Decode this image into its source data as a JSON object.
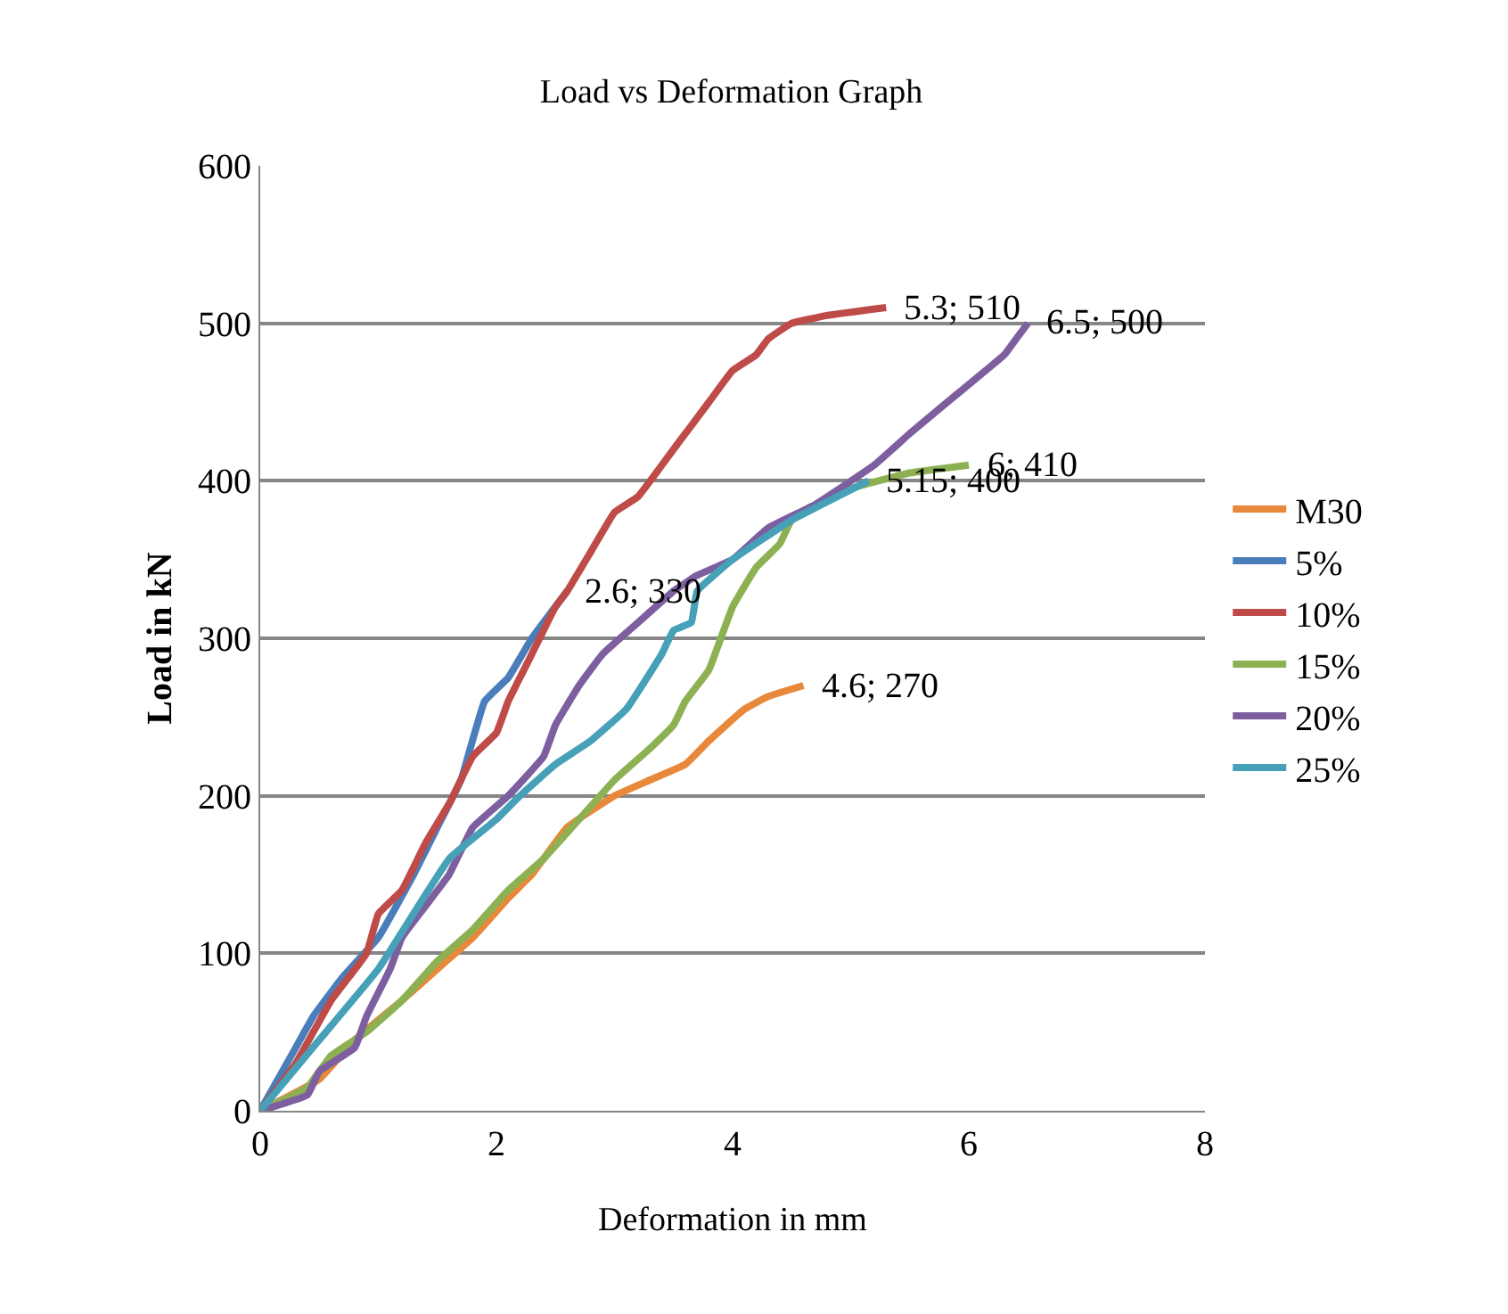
{
  "chart_data": {
    "type": "line",
    "title": "Load vs Deformation Graph",
    "xlabel": "Deformation in mm",
    "ylabel": "Load in kN",
    "xlim": [
      0,
      8
    ],
    "xticks": [
      0,
      2,
      4,
      6,
      8
    ],
    "ylim": [
      0,
      600
    ],
    "yticks": [
      0,
      100,
      200,
      300,
      400,
      500,
      600
    ],
    "grid": "y",
    "legend": "right",
    "marker": "none",
    "line_style": "solid",
    "series": [
      {
        "name": "M30",
        "color": "#e8883a",
        "x": [
          0,
          0.5,
          0.8,
          1.2,
          1.5,
          1.8,
          2.1,
          2.3,
          2.6,
          3.0,
          3.3,
          3.6,
          3.8,
          4.1,
          4.3,
          4.6
        ],
        "values": [
          0,
          20,
          45,
          70,
          90,
          110,
          135,
          150,
          180,
          200,
          210,
          220,
          235,
          255,
          263,
          270
        ]
      },
      {
        "name": "5%",
        "color": "#4a7ebb",
        "x": [
          0,
          0.3,
          0.45,
          0.7,
          1.0,
          1.3,
          1.5,
          1.7,
          1.9,
          2.1,
          2.3,
          2.6
        ],
        "values": [
          0,
          40,
          60,
          85,
          110,
          150,
          180,
          210,
          260,
          275,
          300,
          330
        ]
      },
      {
        "name": "10%",
        "color": "#be4b48",
        "x": [
          0,
          0.3,
          0.6,
          0.9,
          1.0,
          1.2,
          1.4,
          1.6,
          1.8,
          2.0,
          2.1,
          2.3,
          2.5,
          2.6,
          2.8,
          3.0,
          3.2,
          3.5,
          3.8,
          4.0,
          4.2,
          4.3,
          4.5,
          4.8,
          5.3
        ],
        "values": [
          0,
          30,
          70,
          100,
          125,
          140,
          170,
          195,
          225,
          240,
          260,
          290,
          320,
          330,
          355,
          380,
          390,
          420,
          450,
          470,
          480,
          490,
          500,
          505,
          510
        ]
      },
      {
        "name": "15%",
        "color": "#8db152",
        "x": [
          0,
          0.4,
          0.6,
          0.9,
          1.2,
          1.5,
          1.8,
          2.1,
          2.4,
          2.7,
          3.0,
          3.3,
          3.5,
          3.6,
          3.8,
          3.9,
          4.0,
          4.2,
          4.4,
          4.5,
          5.0,
          5.5,
          6.0
        ],
        "values": [
          0,
          15,
          35,
          50,
          70,
          95,
          115,
          140,
          160,
          185,
          210,
          230,
          245,
          260,
          280,
          300,
          320,
          345,
          360,
          375,
          395,
          405,
          410
        ]
      },
      {
        "name": "20%",
        "color": "#7d5fa0",
        "x": [
          0,
          0.4,
          0.5,
          0.8,
          0.9,
          1.1,
          1.2,
          1.4,
          1.6,
          1.8,
          2.1,
          2.4,
          2.5,
          2.7,
          2.9,
          3.2,
          3.5,
          3.7,
          4.0,
          4.3,
          4.7,
          5.2,
          5.5,
          5.9,
          6.3,
          6.4,
          6.5
        ],
        "values": [
          0,
          10,
          25,
          40,
          60,
          90,
          110,
          130,
          150,
          180,
          200,
          225,
          245,
          270,
          290,
          310,
          330,
          340,
          350,
          370,
          385,
          410,
          430,
          455,
          480,
          490,
          500
        ]
      },
      {
        "name": "25%",
        "color": "#46a0b8",
        "x": [
          0,
          0.5,
          1.0,
          1.6,
          2.0,
          2.2,
          2.5,
          2.8,
          3.1,
          3.4,
          3.5,
          3.65,
          3.7,
          4.0,
          4.5,
          5.15
        ],
        "values": [
          0,
          45,
          90,
          160,
          185,
          200,
          220,
          235,
          255,
          290,
          305,
          310,
          330,
          350,
          375,
          400
        ]
      }
    ],
    "annotations": [
      {
        "text": "4.6; 270",
        "x": 4.6,
        "y": 270
      },
      {
        "text": "2.6; 330",
        "x": 2.6,
        "y": 330
      },
      {
        "text": "5.3; 510",
        "x": 5.3,
        "y": 510
      },
      {
        "text": "6; 410",
        "x": 6,
        "y": 410
      },
      {
        "text": "6.5; 500",
        "x": 6.5,
        "y": 500
      },
      {
        "text": "5.15; 400",
        "x": 5.15,
        "y": 400
      }
    ]
  }
}
